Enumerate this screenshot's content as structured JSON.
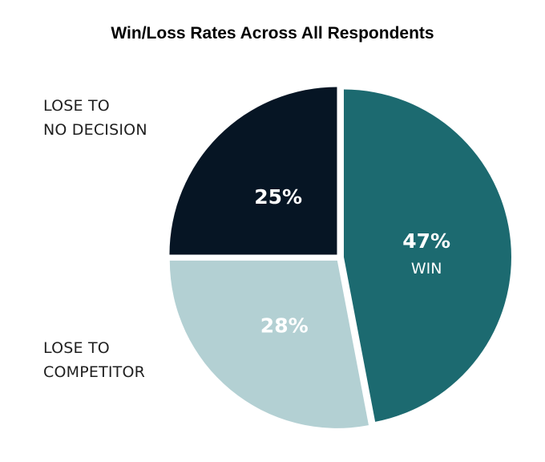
{
  "chart_data": {
    "type": "pie",
    "title": "Win/Loss Rates Across All Respondents",
    "slices": [
      {
        "label": "WIN",
        "value": 47,
        "display": "47%",
        "color": "#1c6a70",
        "text_color": "#ffffff"
      },
      {
        "label": "LOSE TO COMPETITOR",
        "value": 28,
        "display": "28%",
        "color": "#b3d0d3",
        "text_color": "#ffffff"
      },
      {
        "label": "LOSE TO NO DECISION",
        "value": 25,
        "display": "25%",
        "color": "#061524",
        "text_color": "#ffffff"
      }
    ]
  },
  "labels": {
    "no_decision_line1": "LOSE TO",
    "no_decision_line2": "NO DECISION",
    "competitor_line1": "LOSE TO",
    "competitor_line2": "COMPETITOR"
  }
}
